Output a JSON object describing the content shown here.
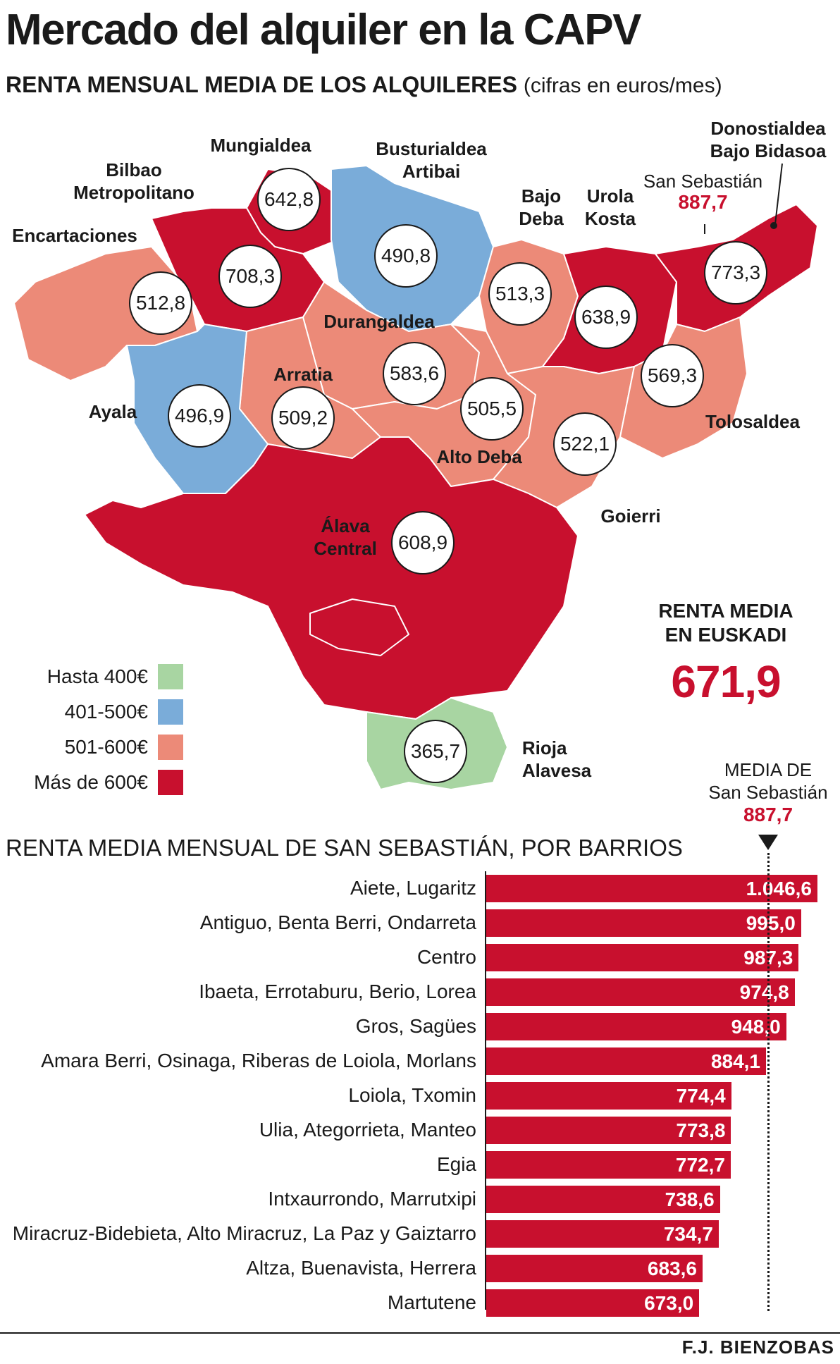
{
  "title": "Mercado del alquiler en la CAPV",
  "map": {
    "subtitle": "RENTA MENSUAL MEDIA DE LOS ALQUILERES",
    "unit_note": "(cifras en euros/mes)",
    "colors": {
      "hasta_400": "#a8d5a2",
      "401_500": "#7aacd9",
      "501_600": "#ec8a78",
      "mas_600": "#c8102e"
    },
    "regions": [
      {
        "name": "Mungialdea",
        "value": "642,8",
        "class": "mas_600"
      },
      {
        "name": "Busturialdea Artibai",
        "value": "490,8",
        "class": "401_500"
      },
      {
        "name": "Bilbao Metropolitano",
        "value": "708,3",
        "class": "mas_600"
      },
      {
        "name": "Encartaciones",
        "value": "512,8",
        "class": "501_600"
      },
      {
        "name": "Bajo Deba",
        "value": "513,3",
        "class": "501_600"
      },
      {
        "name": "Urola Kosta",
        "value": "638,9",
        "class": "mas_600"
      },
      {
        "name": "Donostialdea Bajo Bidasoa",
        "value": "773,3",
        "class": "mas_600"
      },
      {
        "name": "Durangaldea",
        "value": "583,6",
        "class": "501_600"
      },
      {
        "name": "Arratia",
        "value": "509,2",
        "class": "501_600"
      },
      {
        "name": "Ayala",
        "value": "496,9",
        "class": "401_500"
      },
      {
        "name": "Alto Deba",
        "value": "505,5",
        "class": "501_600"
      },
      {
        "name": "Goierri",
        "value": "522,1",
        "class": "501_600"
      },
      {
        "name": "Tolosaldea",
        "value": "569,3",
        "class": "501_600"
      },
      {
        "name": "Álava Central",
        "value": "608,9",
        "class": "mas_600"
      },
      {
        "name": "Rioja Alavesa",
        "value": "365,7",
        "class": "hasta_400"
      }
    ],
    "san_sebastian": {
      "label": "San Sebastián",
      "value": "887,7"
    },
    "legend": [
      {
        "label": "Hasta 400€",
        "key": "hasta_400"
      },
      {
        "label": "401-500€",
        "key": "401_500"
      },
      {
        "label": "501-600€",
        "key": "501_600"
      },
      {
        "label": "Más de 600€",
        "key": "mas_600"
      }
    ],
    "euskadi_average": {
      "label": "RENTA MEDIA\nEN EUSKADI",
      "value": "671,9"
    }
  },
  "chart_data": {
    "type": "bar",
    "orientation": "horizontal",
    "title": "RENTA MEDIA MENSUAL DE SAN SEBASTIÁN, POR BARRIOS",
    "categories": [
      "Aiete, Lugaritz",
      "Antiguo, Benta Berri, Ondarreta",
      "Centro",
      "Ibaeta, Errotaburu, Berio, Lorea",
      "Gros, Sagües",
      "Amara Berri, Osinaga, Riberas de Loiola, Morlans",
      "Loiola, Txomin",
      "Ulia, Ategorrieta, Manteo",
      "Egia",
      "Intxaurrondo, Marrutxipi",
      "Miracruz-Bidebieta, Alto Miracruz, La Paz y Gaiztarro",
      "Altza, Buenavista, Herrera",
      "Martutene"
    ],
    "values": [
      1046.6,
      995.0,
      987.3,
      974.8,
      948.0,
      884.1,
      774.4,
      773.8,
      772.7,
      738.6,
      734.7,
      683.6,
      673.0
    ],
    "value_labels": [
      "1.046,6",
      "995,0",
      "987,3",
      "974,8",
      "948,0",
      "884,1",
      "774,4",
      "773,8",
      "772,7",
      "738,6",
      "734,7",
      "683,6",
      "673,0"
    ],
    "reference_line": {
      "label": "MEDIA DE\nSan Sebastián",
      "value": 887.7,
      "value_label": "887,7"
    },
    "bar_color": "#c8102e"
  },
  "credit": "F.J. BIENZOBAS"
}
